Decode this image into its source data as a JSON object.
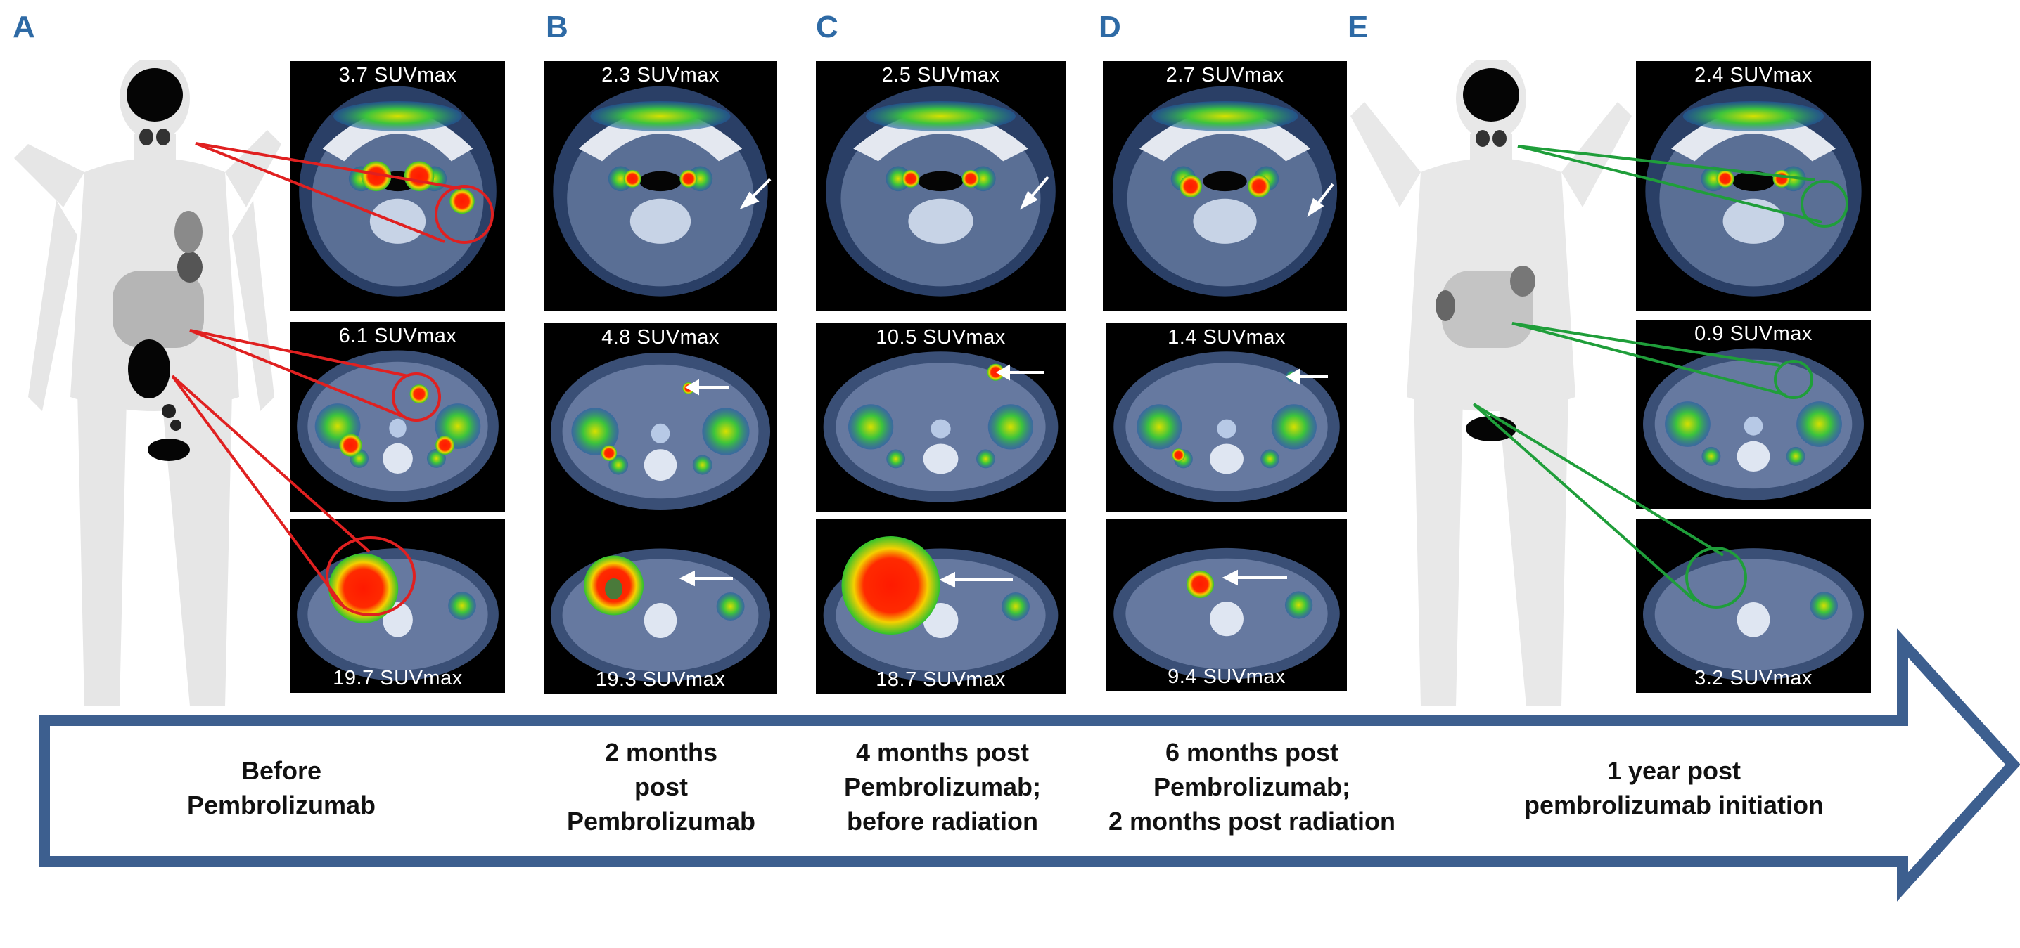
{
  "panels": [
    {
      "letter": "A"
    },
    {
      "letter": "B"
    },
    {
      "letter": "C"
    },
    {
      "letter": "D"
    },
    {
      "letter": "E"
    }
  ],
  "scans": {
    "a_neck": "3.7 SUVmax",
    "a_abd": "6.1 SUVmax",
    "a_pelvis": "19.7 SUVmax",
    "b_neck": "2.3 SUVmax",
    "b_abd": "4.8 SUVmax",
    "b_pelvis": "19.3 SUVmax",
    "c_neck": "2.5 SUVmax",
    "c_abd": "10.5 SUVmax",
    "c_pelvis": "18.7 SUVmax",
    "d_neck": "2.7 SUVmax",
    "d_abd": "1.4 SUVmax",
    "d_pelvis": "9.4 SUVmax",
    "e_neck": "2.4 SUVmax",
    "e_abd": "0.9 SUVmax",
    "e_pelvis": "3.2 SUVmax"
  },
  "timeline": {
    "a": [
      "Before",
      "Pembrolizumab"
    ],
    "b": [
      "2 months",
      "post",
      "Pembrolizumab"
    ],
    "c": [
      "4 months post",
      "Pembrolizumab;",
      "before radiation"
    ],
    "d": [
      "6 months post",
      "Pembrolizumab;",
      "2 months post radiation"
    ],
    "e": [
      "1 year post",
      "pembrolizumab initiation"
    ]
  },
  "colors": {
    "panel_letter": "#2e6aa5",
    "arrow_stroke": "#3d5f8f",
    "before_lines": "#e02020",
    "after_lines": "#1f9e3a"
  }
}
